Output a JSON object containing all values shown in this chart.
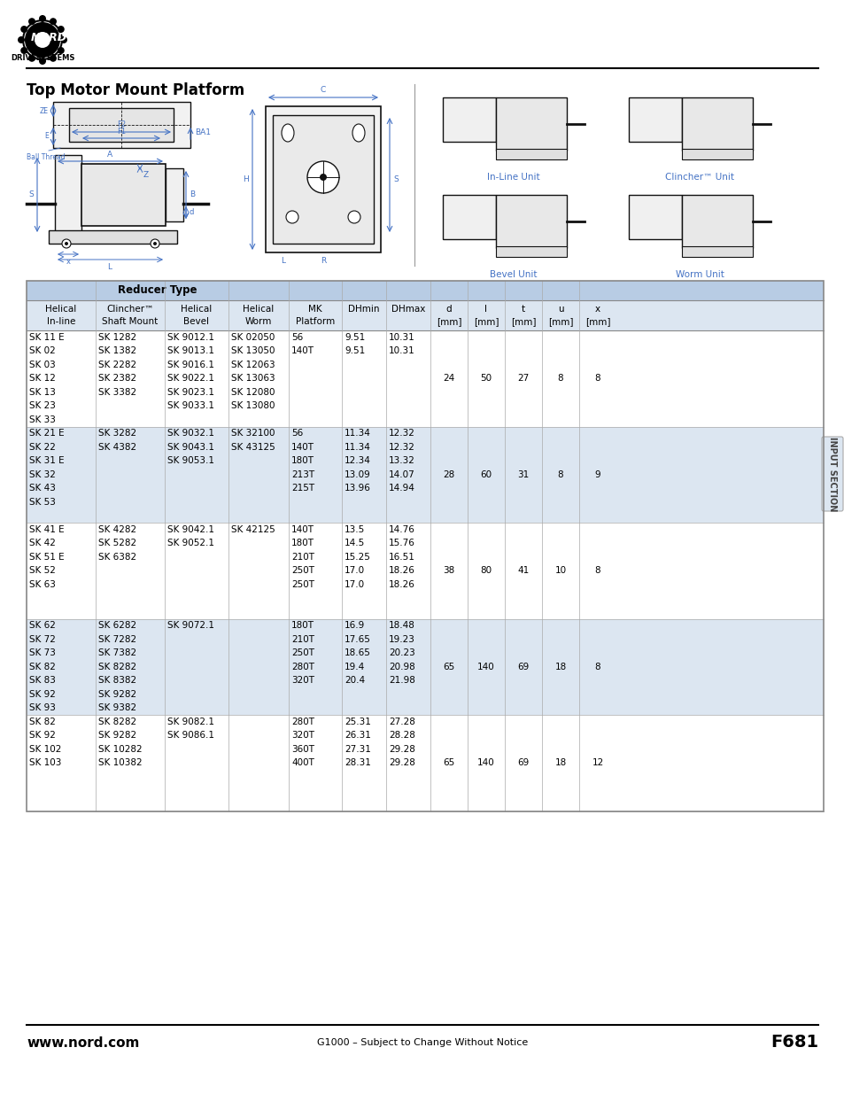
{
  "page_title": "Top Motor Mount Platform",
  "website": "www.nord.com",
  "center_text": "G1000 – Subject to Change Without Notice",
  "page_num": "F681",
  "section_label": "INPUT SECTION",
  "bg_color": "#ffffff",
  "table_header_bg": "#b8cce4",
  "table_row_bg_light": "#dce6f1",
  "table_row_bg_white": "#ffffff",
  "table_border": "#888888",
  "blue": "#4472C4",
  "col_headers_line1": [
    "Helical",
    "Clincher™",
    "Helical",
    "Helical",
    "MK",
    "DHmin",
    "DHmax",
    "d",
    "l",
    "t",
    "u",
    "x"
  ],
  "col_headers_line2": [
    "In-line",
    "Shaft Mount",
    "Bevel",
    "Worm",
    "Platform",
    "",
    "",
    "[mm]",
    "[mm]",
    "[mm]",
    "[mm]",
    "[mm]"
  ],
  "rows": [
    {
      "bg": "white",
      "helical_inline": [
        "SK 11 E",
        "SK 02",
        "SK 03",
        "SK 12",
        "SK 13",
        "SK 23",
        "SK 33"
      ],
      "clincher_shaft": [
        "SK 1282",
        "SK 1382",
        "SK 2282",
        "SK 2382",
        "SK 3382",
        "",
        ""
      ],
      "helical_bevel": [
        "SK 9012.1",
        "SK 9013.1",
        "SK 9016.1",
        "SK 9022.1",
        "SK 9023.1",
        "SK 9033.1",
        ""
      ],
      "helical_worm": [
        "SK 02050",
        "SK 13050",
        "SK 12063",
        "SK 13063",
        "SK 12080",
        "SK 13080",
        ""
      ],
      "mk": [
        "56",
        "140T",
        "",
        "",
        "",
        "",
        ""
      ],
      "dhmin": [
        "9.51",
        "9.51",
        "",
        "",
        "",
        "",
        ""
      ],
      "dhmax": [
        "10.31",
        "10.31",
        "",
        "",
        "",
        "",
        ""
      ],
      "d": "24",
      "l": "50",
      "t": "27",
      "u": "8",
      "x": "8"
    },
    {
      "bg": "light",
      "helical_inline": [
        "SK 21 E",
        "SK 22",
        "SK 31 E",
        "SK 32",
        "SK 43",
        "SK 53",
        ""
      ],
      "clincher_shaft": [
        "SK 3282",
        "SK 4382",
        "",
        "",
        "",
        "",
        ""
      ],
      "helical_bevel": [
        "SK 9032.1",
        "SK 9043.1",
        "SK 9053.1",
        "",
        "",
        "",
        ""
      ],
      "helical_worm": [
        "SK 32100",
        "SK 43125",
        "",
        "",
        "",
        "",
        ""
      ],
      "mk": [
        "56",
        "140T",
        "180T",
        "213T",
        "215T",
        "",
        ""
      ],
      "dhmin": [
        "11.34",
        "11.34",
        "12.34",
        "13.09",
        "13.96",
        "",
        ""
      ],
      "dhmax": [
        "12.32",
        "12.32",
        "13.32",
        "14.07",
        "14.94",
        "",
        ""
      ],
      "d": "28",
      "l": "60",
      "t": "31",
      "u": "8",
      "x": "9"
    },
    {
      "bg": "white",
      "helical_inline": [
        "SK 41 E",
        "SK 42",
        "SK 51 E",
        "SK 52",
        "SK 63",
        "",
        ""
      ],
      "clincher_shaft": [
        "SK 4282",
        "SK 5282",
        "SK 6382",
        "",
        "",
        "",
        ""
      ],
      "helical_bevel": [
        "SK 9042.1",
        "SK 9052.1",
        "",
        "",
        "",
        "",
        ""
      ],
      "helical_worm": [
        "SK 42125",
        "",
        "",
        "",
        "",
        "",
        ""
      ],
      "mk": [
        "140T",
        "180T",
        "210T",
        "250T",
        "250T",
        "",
        ""
      ],
      "dhmin": [
        "13.5",
        "14.5",
        "15.25",
        "17.0",
        "17.0",
        "",
        ""
      ],
      "dhmax": [
        "14.76",
        "15.76",
        "16.51",
        "18.26",
        "18.26",
        "",
        ""
      ],
      "d": "38",
      "l": "80",
      "t": "41",
      "u": "10",
      "x": "8"
    },
    {
      "bg": "light",
      "helical_inline": [
        "SK 62",
        "SK 72",
        "SK 73",
        "SK 82",
        "SK 83",
        "SK 92",
        "SK 93"
      ],
      "clincher_shaft": [
        "SK 6282",
        "SK 7282",
        "SK 7382",
        "SK 8282",
        "SK 8382",
        "SK 9282",
        "SK 9382"
      ],
      "helical_bevel": [
        "SK 9072.1",
        "",
        "",
        "",
        "",
        "",
        ""
      ],
      "helical_worm": [
        "",
        "",
        "",
        "",
        "",
        "",
        ""
      ],
      "mk": [
        "180T",
        "210T",
        "250T",
        "280T",
        "320T",
        "",
        ""
      ],
      "dhmin": [
        "16.9",
        "17.65",
        "18.65",
        "19.4",
        "20.4",
        "",
        ""
      ],
      "dhmax": [
        "18.48",
        "19.23",
        "20.23",
        "20.98",
        "21.98",
        "",
        ""
      ],
      "d": "65",
      "l": "140",
      "t": "69",
      "u": "18",
      "x": "8"
    },
    {
      "bg": "white",
      "helical_inline": [
        "SK 82",
        "SK 92",
        "SK 102",
        "SK 103",
        "",
        "",
        ""
      ],
      "clincher_shaft": [
        "SK 8282",
        "SK 9282",
        "SK 10282",
        "SK 10382",
        "",
        "",
        ""
      ],
      "helical_bevel": [
        "SK 9082.1",
        "SK 9086.1",
        "",
        "",
        "",
        "",
        ""
      ],
      "helical_worm": [
        "",
        "",
        "",
        "",
        "",
        "",
        ""
      ],
      "mk": [
        "280T",
        "320T",
        "360T",
        "400T",
        "",
        "",
        ""
      ],
      "dhmin": [
        "25.31",
        "26.31",
        "27.31",
        "28.31",
        "",
        "",
        ""
      ],
      "dhmax": [
        "27.28",
        "28.28",
        "29.28",
        "29.28",
        "",
        "",
        ""
      ],
      "d": "65",
      "l": "140",
      "t": "69",
      "u": "18",
      "x": "12"
    }
  ]
}
